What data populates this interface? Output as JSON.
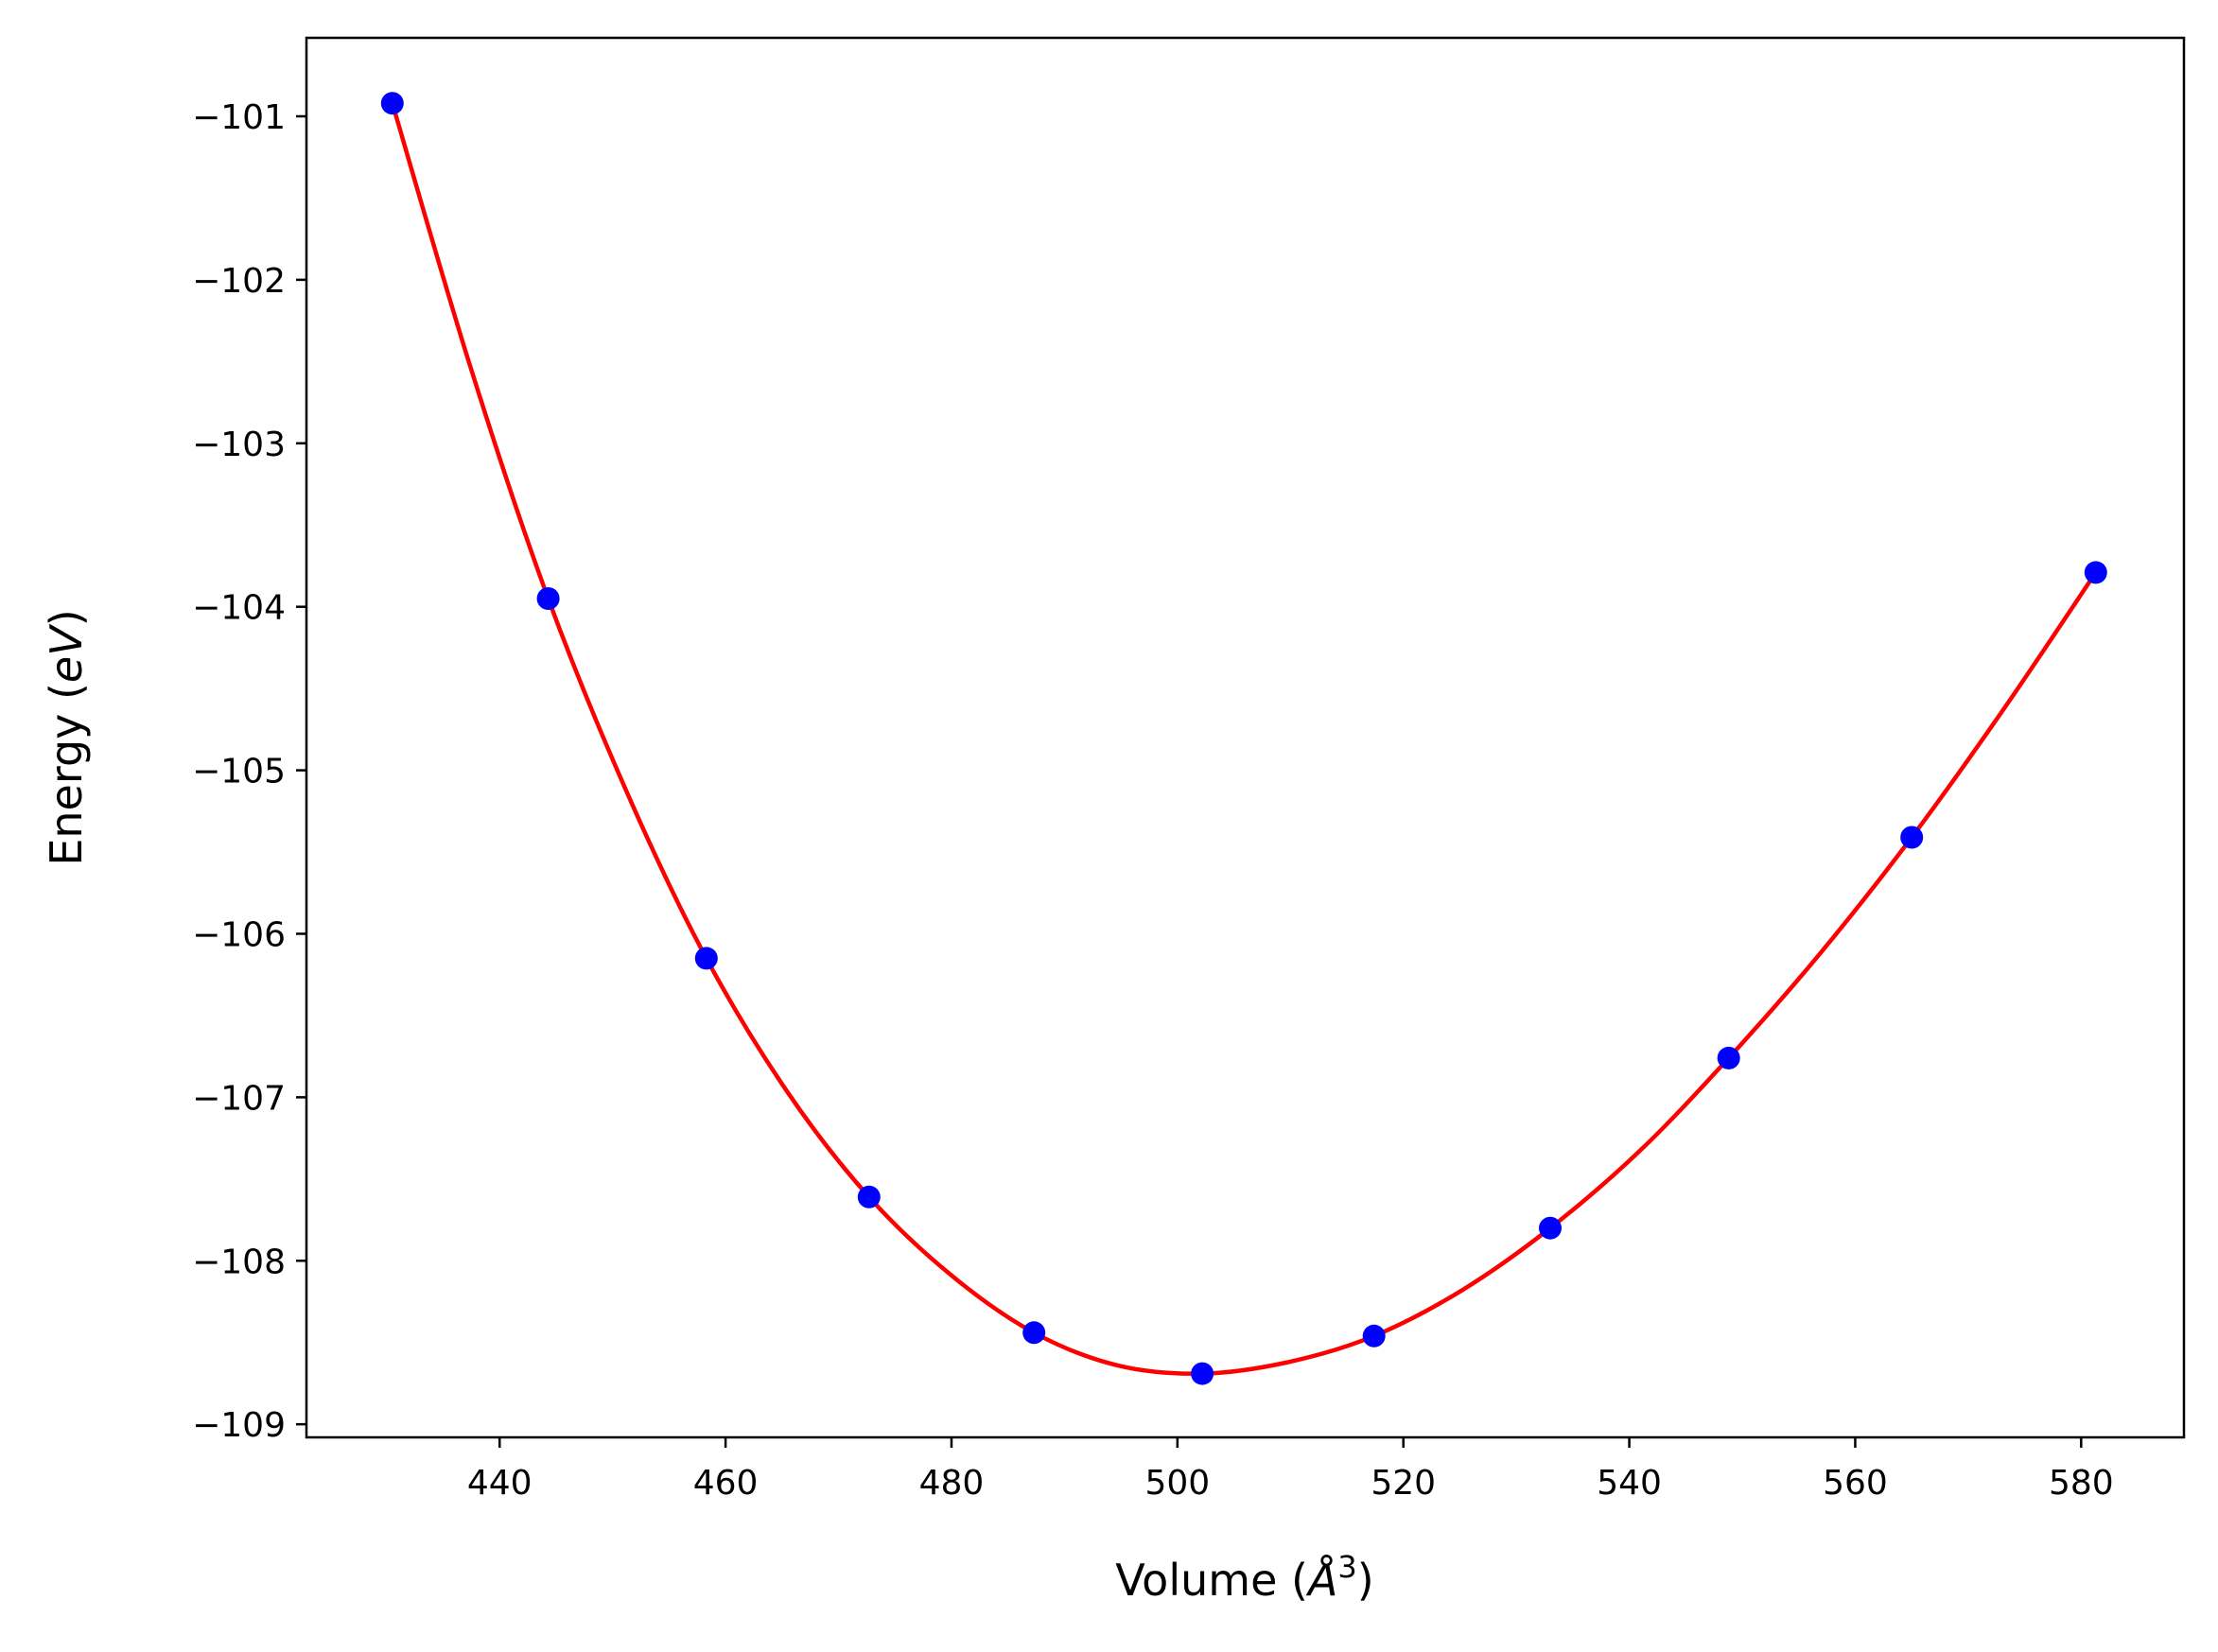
{
  "chart_data": {
    "type": "scatter",
    "xlabel": "Volume (Å³)",
    "xlabel_parts": {
      "pre": "Volume (",
      "italic": "Å",
      "sup": "3",
      "post": ")"
    },
    "ylabel": "Energy (eV)",
    "ylabel_parts": {
      "pre": "Energy (",
      "italic": "eV",
      "post": ")"
    },
    "xlim": [
      422.9,
      589.1
    ],
    "ylim": [
      -109.08,
      -100.52
    ],
    "x_ticks": [
      440,
      460,
      480,
      500,
      520,
      540,
      560,
      580
    ],
    "x_tick_labels": [
      "440",
      "460",
      "480",
      "500",
      "520",
      "540",
      "560",
      "580"
    ],
    "y_ticks": [
      -101,
      -102,
      -103,
      -104,
      -105,
      -106,
      -107,
      -108,
      -109
    ],
    "y_tick_labels": [
      "−101",
      "−102",
      "−103",
      "−104",
      "−105",
      "−106",
      "−107",
      "−108",
      "−109"
    ],
    "grid": false,
    "series": [
      {
        "kind": "points",
        "color": "#0000ff",
        "x": [
          430.5,
          444.3,
          458.3,
          472.7,
          487.3,
          502.2,
          517.4,
          533.0,
          548.8,
          565.0,
          581.3
        ],
        "y": [
          -100.92,
          -103.95,
          -106.15,
          -107.61,
          -108.44,
          -108.69,
          -108.46,
          -107.8,
          -106.76,
          -105.41,
          -103.79
        ]
      },
      {
        "kind": "fit-curve",
        "color": "#ff0000",
        "x": [
          430.5,
          437.4,
          444.3,
          451.3,
          458.3,
          465.5,
          472.7,
          480.0,
          487.3,
          494.7,
          502.2,
          509.8,
          517.4,
          525.2,
          533.0,
          540.9,
          548.8,
          556.9,
          565.0,
          573.1,
          581.3
        ],
        "y": [
          -100.92,
          -102.53,
          -103.95,
          -105.14,
          -106.15,
          -106.97,
          -107.61,
          -108.09,
          -108.44,
          -108.64,
          -108.69,
          -108.62,
          -108.46,
          -108.18,
          -107.8,
          -107.33,
          -106.76,
          -106.12,
          -105.41,
          -104.63,
          -103.79
        ]
      }
    ]
  }
}
